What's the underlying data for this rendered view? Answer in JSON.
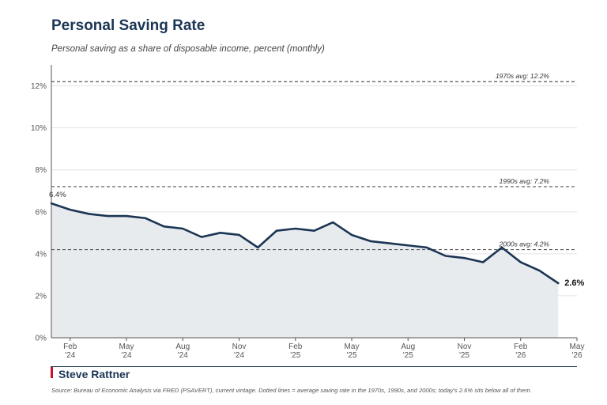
{
  "title": "Personal Saving Rate",
  "subtitle": "Personal saving as a share of disposable income, percent (monthly)",
  "brand": "Steve Rattner",
  "source": "Source: Bureau of Economic Analysis via FRED (PSAVERT), current vintage. Dotted lines = average saving rate in the 1970s, 1990s, and 2000s; today's 2.6% sits below all of them.",
  "colors": {
    "line": "#1b3554",
    "area": "#e8ebee",
    "reference": "#555555",
    "brand_accent": "#c8102e"
  },
  "chart_data": {
    "type": "area",
    "x": [
      "2024-01",
      "2024-02",
      "2024-03",
      "2024-04",
      "2024-05",
      "2024-06",
      "2024-07",
      "2024-08",
      "2024-09",
      "2024-10",
      "2024-11",
      "2024-12",
      "2025-01",
      "2025-02",
      "2025-03",
      "2025-04",
      "2025-05",
      "2025-06",
      "2025-07",
      "2025-08",
      "2025-09",
      "2025-10",
      "2025-11",
      "2025-12",
      "2026-01",
      "2026-02",
      "2026-03",
      "2026-04"
    ],
    "values": [
      6.4,
      6.1,
      5.9,
      5.8,
      5.8,
      5.7,
      5.3,
      5.2,
      4.8,
      5.0,
      4.9,
      4.3,
      5.1,
      5.2,
      5.1,
      5.5,
      4.9,
      4.6,
      4.5,
      4.4,
      4.3,
      3.9,
      3.8,
      3.6,
      4.3,
      3.6,
      3.2,
      2.6
    ],
    "ylim": [
      0,
      13
    ],
    "xlim": [
      "2024-01",
      "2026-05"
    ],
    "yticks": [
      0,
      2,
      4,
      6,
      8,
      10,
      12
    ],
    "ytick_labels": [
      "0%",
      "2%",
      "4%",
      "6%",
      "8%",
      "10%",
      "12%"
    ],
    "xticks": [
      {
        "x": "2024-02",
        "line1": "Feb",
        "line2": "'24"
      },
      {
        "x": "2024-05",
        "line1": "May",
        "line2": "'24"
      },
      {
        "x": "2024-08",
        "line1": "Aug",
        "line2": "'24"
      },
      {
        "x": "2024-11",
        "line1": "Nov",
        "line2": "'24"
      },
      {
        "x": "2025-02",
        "line1": "Feb",
        "line2": "'25"
      },
      {
        "x": "2025-05",
        "line1": "May",
        "line2": "'25"
      },
      {
        "x": "2025-08",
        "line1": "Aug",
        "line2": "'25"
      },
      {
        "x": "2025-11",
        "line1": "Nov",
        "line2": "'25"
      },
      {
        "x": "2026-02",
        "line1": "Feb",
        "line2": "'26"
      },
      {
        "x": "2026-05",
        "line1": "May",
        "line2": "'26"
      }
    ],
    "reference_lines": [
      {
        "value": 12.2,
        "label": "1970s avg: 12.2%"
      },
      {
        "value": 7.2,
        "label": "1990s avg: 7.2%"
      },
      {
        "value": 4.2,
        "label": "2000s avg: 4.2%"
      }
    ],
    "start_label": "6.4%",
    "end_label": "2.6%",
    "grid": true
  }
}
